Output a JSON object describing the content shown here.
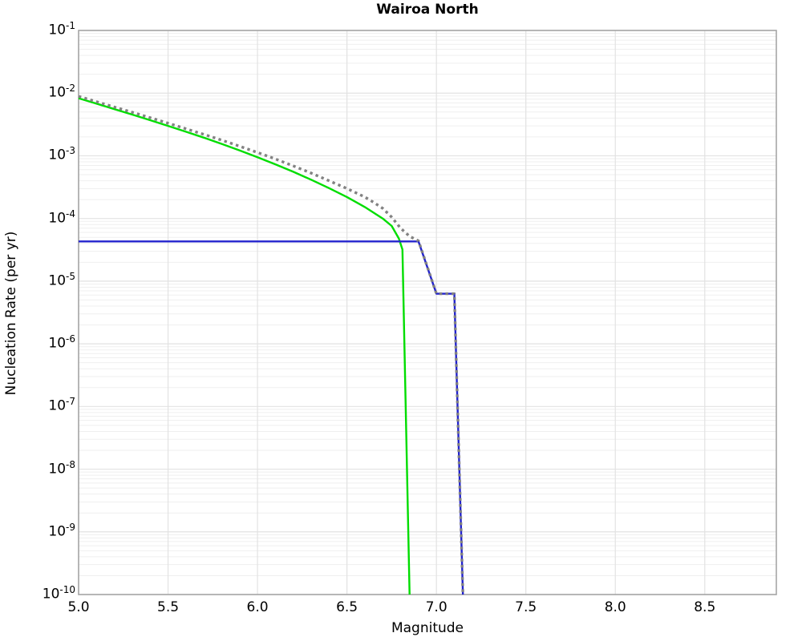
{
  "chart_data": {
    "type": "line",
    "title": "Wairoa North",
    "xlabel": "Magnitude",
    "ylabel": "Nucleation Rate (per yr)",
    "xlim": [
      5.0,
      8.9
    ],
    "y_scale": "log",
    "ylim": [
      1e-10,
      0.1
    ],
    "x_ticks": [
      5.0,
      5.5,
      6.0,
      6.5,
      7.0,
      7.5,
      8.0,
      8.5
    ],
    "x_tick_labels": [
      "5.0",
      "5.5",
      "6.0",
      "6.5",
      "7.0",
      "7.5",
      "8.0",
      "8.5"
    ],
    "y_tick_exponents": [
      -1,
      -2,
      -3,
      -4,
      -5,
      -6,
      -7,
      -8,
      -9,
      -10
    ],
    "grid": {
      "major_color": "#e2e2e2",
      "minor_color": "#efefef",
      "frame_color": "#a6a6a6"
    },
    "legend": "none",
    "series": [
      {
        "name": "incremental-rate-green",
        "color": "#00dd00",
        "style": "solid",
        "width": 2.4,
        "points": [
          [
            5.0,
            0.0083
          ],
          [
            5.1,
            0.0068
          ],
          [
            5.2,
            0.00555
          ],
          [
            5.3,
            0.00455
          ],
          [
            5.4,
            0.0037
          ],
          [
            5.5,
            0.003
          ],
          [
            5.6,
            0.00242
          ],
          [
            5.7,
            0.00195
          ],
          [
            5.8,
            0.00155
          ],
          [
            5.9,
            0.00122
          ],
          [
            6.0,
            0.00095
          ],
          [
            6.1,
            0.00073
          ],
          [
            6.2,
            0.000555
          ],
          [
            6.3,
            0.000415
          ],
          [
            6.4,
            0.000305
          ],
          [
            6.5,
            0.00022
          ],
          [
            6.6,
            0.000152
          ],
          [
            6.7,
            0.0001
          ],
          [
            6.75,
            7.6e-05
          ],
          [
            6.79,
            4.8e-05
          ],
          [
            6.81,
            3.2e-05
          ],
          [
            6.85,
            1e-10
          ]
        ]
      },
      {
        "name": "characteristic-rate-blue",
        "color": "#2323cd",
        "style": "solid",
        "width": 2.4,
        "points": [
          [
            5.0,
            4.3e-05
          ],
          [
            6.9,
            4.3e-05
          ],
          [
            7.0,
            6.3e-06
          ],
          [
            7.1,
            6.3e-06
          ],
          [
            7.148,
            1e-10
          ]
        ]
      },
      {
        "name": "total-rate-dotted",
        "color": "#828282",
        "style": "dotted",
        "width": 3.4,
        "points": [
          [
            5.0,
            0.0089
          ],
          [
            5.1,
            0.0073
          ],
          [
            5.2,
            0.006
          ],
          [
            5.3,
            0.00495
          ],
          [
            5.4,
            0.00405
          ],
          [
            5.5,
            0.00332
          ],
          [
            5.6,
            0.0027
          ],
          [
            5.7,
            0.0022
          ],
          [
            5.8,
            0.00178
          ],
          [
            5.9,
            0.00142
          ],
          [
            6.0,
            0.00113
          ],
          [
            6.1,
            0.00089
          ],
          [
            6.2,
            0.00069
          ],
          [
            6.3,
            0.00053
          ],
          [
            6.4,
            0.0004
          ],
          [
            6.5,
            0.0003
          ],
          [
            6.6,
            0.00022
          ],
          [
            6.65,
            0.00018
          ],
          [
            6.7,
            0.000145
          ],
          [
            6.75,
            0.000105
          ],
          [
            6.8,
            7e-05
          ],
          [
            6.85,
            5.2e-05
          ],
          [
            6.9,
            4.4e-05
          ],
          [
            7.0,
            6.3e-06
          ],
          [
            7.1,
            6.3e-06
          ],
          [
            7.148,
            1e-10
          ]
        ]
      }
    ]
  }
}
